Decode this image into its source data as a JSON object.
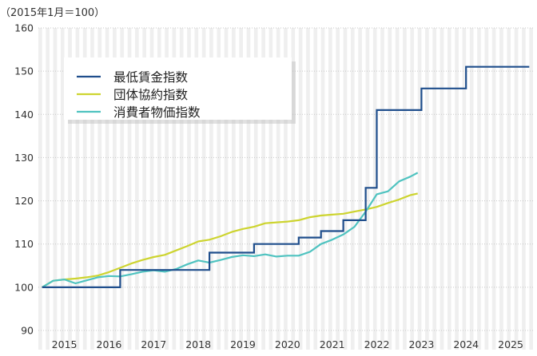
{
  "chart_data": {
    "type": "line",
    "unit_note": "（2015年1月＝100）",
    "x_ticks": [
      "2015",
      "2016",
      "2017",
      "2018",
      "2019",
      "2020",
      "2021",
      "2022",
      "2023",
      "2024",
      "2025"
    ],
    "ylim": [
      90,
      160
    ],
    "y_ticks": [
      "90",
      "100",
      "110",
      "120",
      "130",
      "140",
      "150",
      "160"
    ],
    "grid": "vertical alternating shaded monthly bands, horizontal dotted gridlines",
    "legend_placement": "top-left",
    "series": [
      {
        "name": "最低賃金指数",
        "color": "#1f4e8c",
        "step": true,
        "points": [
          [
            "2015-01",
            100
          ],
          [
            "2016-10",
            100
          ],
          [
            "2016-10",
            104
          ],
          [
            "2018-10",
            104
          ],
          [
            "2018-10",
            108
          ],
          [
            "2019-10",
            108
          ],
          [
            "2019-10",
            110
          ],
          [
            "2020-10",
            110
          ],
          [
            "2020-10",
            111.5
          ],
          [
            "2021-04",
            111.5
          ],
          [
            "2021-04",
            113
          ],
          [
            "2021-10",
            113
          ],
          [
            "2021-10",
            115.5
          ],
          [
            "2022-04",
            115.5
          ],
          [
            "2022-04",
            123
          ],
          [
            "2022-07",
            123
          ],
          [
            "2022-07",
            141
          ],
          [
            "2023-07",
            141
          ],
          [
            "2023-07",
            146
          ],
          [
            "2024-07",
            146
          ],
          [
            "2024-07",
            151
          ],
          [
            "2025-12",
            151
          ]
        ]
      },
      {
        "name": "団体協約指数",
        "color": "#cdd42f",
        "step": false,
        "points": [
          [
            "2015-01",
            100
          ],
          [
            "2015-04",
            101.5
          ],
          [
            "2015-07",
            101.8
          ],
          [
            "2015-10",
            102
          ],
          [
            "2016-01",
            102.3
          ],
          [
            "2016-04",
            102.7
          ],
          [
            "2016-07",
            103.5
          ],
          [
            "2016-10",
            104.5
          ],
          [
            "2017-01",
            105.5
          ],
          [
            "2017-04",
            106.3
          ],
          [
            "2017-07",
            107
          ],
          [
            "2017-10",
            107.5
          ],
          [
            "2018-01",
            108.5
          ],
          [
            "2018-04",
            109.5
          ],
          [
            "2018-07",
            110.6
          ],
          [
            "2018-10",
            111
          ],
          [
            "2019-01",
            111.8
          ],
          [
            "2019-04",
            112.8
          ],
          [
            "2019-07",
            113.5
          ],
          [
            "2019-10",
            114
          ],
          [
            "2020-01",
            114.8
          ],
          [
            "2020-04",
            115
          ],
          [
            "2020-07",
            115.2
          ],
          [
            "2020-10",
            115.5
          ],
          [
            "2021-01",
            116.2
          ],
          [
            "2021-04",
            116.6
          ],
          [
            "2021-07",
            116.8
          ],
          [
            "2021-10",
            117
          ],
          [
            "2022-01",
            117.5
          ],
          [
            "2022-04",
            118
          ],
          [
            "2022-07",
            118.6
          ],
          [
            "2022-10",
            119.5
          ],
          [
            "2023-01",
            120.3
          ],
          [
            "2023-04",
            121.3
          ],
          [
            "2023-06",
            121.7
          ]
        ]
      },
      {
        "name": "消費者物価指数",
        "color": "#4fc3c0",
        "step": false,
        "points": [
          [
            "2015-01",
            100
          ],
          [
            "2015-04",
            101.5
          ],
          [
            "2015-07",
            101.8
          ],
          [
            "2015-10",
            100.9
          ],
          [
            "2016-01",
            101.6
          ],
          [
            "2016-04",
            102.3
          ],
          [
            "2016-07",
            102.6
          ],
          [
            "2016-10",
            102.5
          ],
          [
            "2017-01",
            103
          ],
          [
            "2017-04",
            103.6
          ],
          [
            "2017-07",
            103.9
          ],
          [
            "2017-10",
            103.6
          ],
          [
            "2018-01",
            104.2
          ],
          [
            "2018-04",
            105.3
          ],
          [
            "2018-07",
            106.2
          ],
          [
            "2018-10",
            105.7
          ],
          [
            "2019-01",
            106.3
          ],
          [
            "2019-04",
            107
          ],
          [
            "2019-07",
            107.4
          ],
          [
            "2019-10",
            107.2
          ],
          [
            "2020-01",
            107.6
          ],
          [
            "2020-04",
            107.1
          ],
          [
            "2020-07",
            107.3
          ],
          [
            "2020-10",
            107.3
          ],
          [
            "2021-01",
            108.2
          ],
          [
            "2021-04",
            110
          ],
          [
            "2021-07",
            111
          ],
          [
            "2021-10",
            112.2
          ],
          [
            "2022-01",
            114
          ],
          [
            "2022-04",
            117.5
          ],
          [
            "2022-07",
            121.5
          ],
          [
            "2022-10",
            122.2
          ],
          [
            "2023-01",
            124.5
          ],
          [
            "2023-04",
            125.6
          ],
          [
            "2023-06",
            126.5
          ]
        ]
      }
    ]
  }
}
